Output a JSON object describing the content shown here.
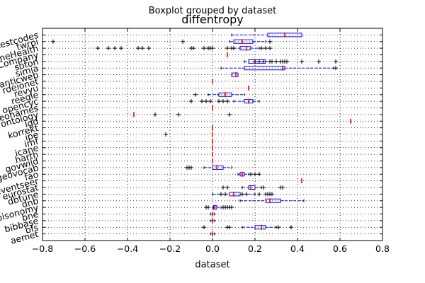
{
  "chart_data": {
    "type": "boxplot",
    "suptitle": "Boxplot grouped by dataset",
    "title": "diffentropy",
    "xlabel": "dataset",
    "ylabel": "",
    "orientation": "horizontal",
    "xlim": [
      -0.8,
      0.8
    ],
    "xticks": [
      "−0.8",
      "−0.6",
      "−0.4",
      "−0.2",
      "0.0",
      "0.2",
      "0.4",
      "0.6",
      "0.8"
    ],
    "grid": true,
    "categories": [
      "aemet",
      "bfs",
      "bibbase",
      "bne",
      "bisonomy",
      "dnb",
      "dbtune",
      "eurostat",
      "eventseer",
      "fao",
      "geovocab",
      "govwild",
      "harth",
      "icane",
      "imf",
      "ipe",
      "korrekt",
      "lgd",
      "ontology",
      "geonames",
      "opencyc",
      "reegle",
      "revyu",
      "rdeionet",
      "semanticweb",
      "simia",
      "soton",
      "someCompany",
      "someHealth",
      "twrpi",
      "testcodes"
    ],
    "boxes": [
      {
        "name": "aemet",
        "whislo": -0.01,
        "q1": 0.0,
        "med": 0.0,
        "q3": 0.0,
        "whishi": 0.01,
        "fliers": []
      },
      {
        "name": "bfs",
        "whislo": 0.14,
        "q1": 0.2,
        "med": 0.23,
        "q3": 0.25,
        "whishi": 0.3,
        "fliers": [
          -0.04,
          0.07,
          0.08,
          0.31,
          0.37
        ]
      },
      {
        "name": "bibbase",
        "whislo": -0.01,
        "q1": 0.0,
        "med": 0.0,
        "q3": 0.0,
        "whishi": 0.01,
        "fliers": []
      },
      {
        "name": "bne",
        "whislo": -0.01,
        "q1": 0.0,
        "med": 0.0,
        "q3": 0.0,
        "whishi": 0.01,
        "fliers": []
      },
      {
        "name": "bisonomy",
        "whislo": 0.0,
        "q1": 0.005,
        "med": 0.01,
        "q3": 0.02,
        "whishi": 0.04,
        "fliers": [
          -0.03,
          -0.02,
          0.05,
          0.06,
          0.07,
          0.08,
          0.09
        ]
      },
      {
        "name": "dnb",
        "whislo": 0.13,
        "q1": 0.25,
        "med": 0.27,
        "q3": 0.32,
        "whishi": 0.43,
        "fliers": []
      },
      {
        "name": "dbtune",
        "whislo": 0.0,
        "q1": 0.08,
        "med": 0.1,
        "q3": 0.13,
        "whishi": 0.2,
        "fliers": [
          0.04,
          0.06,
          0.14,
          0.16,
          0.22,
          0.25,
          0.26,
          0.27,
          0.28
        ]
      },
      {
        "name": "eurostat",
        "whislo": 0.14,
        "q1": 0.17,
        "med": 0.18,
        "q3": 0.2,
        "whishi": 0.23,
        "fliers": [
          0.05,
          0.07,
          0.24,
          0.32,
          0.33
        ]
      },
      {
        "name": "eventseer",
        "whislo": 0.42,
        "q1": 0.42,
        "med": 0.42,
        "q3": 0.42,
        "whishi": 0.42,
        "fliers": []
      },
      {
        "name": "fao",
        "whislo": 0.12,
        "q1": 0.13,
        "med": 0.14,
        "q3": 0.15,
        "whishi": 0.17,
        "fliers": [
          0.18,
          0.2,
          0.22
        ]
      },
      {
        "name": "geovocab",
        "whislo": -0.04,
        "q1": 0.0,
        "med": 0.02,
        "q3": 0.05,
        "whishi": 0.09,
        "fliers": [
          -0.12,
          -0.11,
          -0.1
        ]
      },
      {
        "name": "govwild",
        "whislo": 0.0,
        "q1": 0.0,
        "med": 0.0,
        "q3": 0.0,
        "whishi": 0.0,
        "fliers": []
      },
      {
        "name": "harth",
        "whislo": 0.0,
        "q1": 0.0,
        "med": 0.0,
        "q3": 0.0,
        "whishi": 0.0,
        "fliers": []
      },
      {
        "name": "icane",
        "whislo": 0.0,
        "q1": 0.0,
        "med": 0.0,
        "q3": 0.0,
        "whishi": 0.0,
        "fliers": []
      },
      {
        "name": "imf",
        "whislo": 0.0,
        "q1": 0.0,
        "med": 0.0,
        "q3": 0.0,
        "whishi": 0.0,
        "fliers": []
      },
      {
        "name": "ipe",
        "whislo": 0.0,
        "q1": 0.0,
        "med": 0.0,
        "q3": 0.0,
        "whishi": 0.0,
        "fliers": [
          -0.22
        ]
      },
      {
        "name": "korrekt",
        "whislo": 0.0,
        "q1": 0.0,
        "med": 0.0,
        "q3": 0.0,
        "whishi": 0.0,
        "fliers": []
      },
      {
        "name": "lgd",
        "whislo": 0.65,
        "q1": 0.65,
        "med": 0.65,
        "q3": 0.65,
        "whishi": 0.65,
        "fliers": []
      },
      {
        "name": "ontology",
        "whislo": -0.37,
        "q1": -0.37,
        "med": -0.37,
        "q3": -0.37,
        "whishi": -0.37,
        "fliers": [
          -0.27,
          -0.16,
          0.08
        ]
      },
      {
        "name": "geonames",
        "whislo": 0.0,
        "q1": 0.0,
        "med": 0.0,
        "q3": 0.0,
        "whishi": 0.0,
        "fliers": []
      },
      {
        "name": "opencyc",
        "whislo": 0.1,
        "q1": 0.15,
        "med": 0.17,
        "q3": 0.19,
        "whishi": 0.22,
        "fliers": [
          -0.1,
          -0.05,
          -0.03,
          -0.01,
          0.03,
          0.05,
          0.07
        ]
      },
      {
        "name": "reegle",
        "whislo": -0.02,
        "q1": 0.03,
        "med": 0.06,
        "q3": 0.09,
        "whishi": 0.15,
        "fliers": [
          -0.08
        ]
      },
      {
        "name": "revyu",
        "whislo": 0.17,
        "q1": 0.17,
        "med": 0.17,
        "q3": 0.17,
        "whishi": 0.17,
        "fliers": []
      },
      {
        "name": "rdeionet",
        "whislo": 0.0,
        "q1": 0.0,
        "med": 0.0,
        "q3": 0.0,
        "whishi": 0.0,
        "fliers": []
      },
      {
        "name": "semanticweb",
        "whislo": 0.09,
        "q1": 0.09,
        "med": 0.11,
        "q3": 0.12,
        "whishi": 0.12,
        "fliers": []
      },
      {
        "name": "simia",
        "whislo": 0.04,
        "q1": 0.15,
        "med": 0.33,
        "q3": 0.34,
        "whishi": 0.57,
        "fliers": [
          0.58
        ]
      },
      {
        "name": "soton",
        "whislo": 0.15,
        "q1": 0.17,
        "med": 0.2,
        "q3": 0.25,
        "whishi": 0.32,
        "fliers": [
          0.2,
          0.22,
          0.24,
          0.27,
          0.28,
          0.3,
          0.32,
          0.33,
          0.34,
          0.35,
          0.42,
          0.5,
          0.58
        ]
      },
      {
        "name": "someCompany",
        "whislo": 0.07,
        "q1": 0.07,
        "med": 0.07,
        "q3": 0.07,
        "whishi": 0.07,
        "fliers": []
      },
      {
        "name": "someHealth",
        "whislo": 0.1,
        "q1": 0.13,
        "med": 0.16,
        "q3": 0.18,
        "whishi": 0.22,
        "fliers": [
          -0.54,
          -0.49,
          -0.46,
          -0.43,
          -0.35,
          -0.33,
          -0.3,
          -0.1,
          -0.09,
          -0.04,
          -0.02,
          -0.01,
          0.0,
          0.07,
          0.09,
          0.1,
          0.23,
          0.25,
          0.27
        ]
      },
      {
        "name": "twrpi",
        "whislo": 0.08,
        "q1": 0.1,
        "med": 0.14,
        "q3": 0.19,
        "whishi": 0.25,
        "fliers": [
          -0.75,
          -0.14,
          0.27
        ]
      },
      {
        "name": "testcodes",
        "whislo": 0.09,
        "q1": 0.26,
        "med": 0.34,
        "q3": 0.42,
        "whishi": 0.42,
        "fliers": []
      }
    ],
    "colors": {
      "box": "#0000ff",
      "median": "#ff0000",
      "whisker": "#0000ff",
      "flier": "#000000",
      "spine": "#000000",
      "grid": "#000000"
    }
  }
}
